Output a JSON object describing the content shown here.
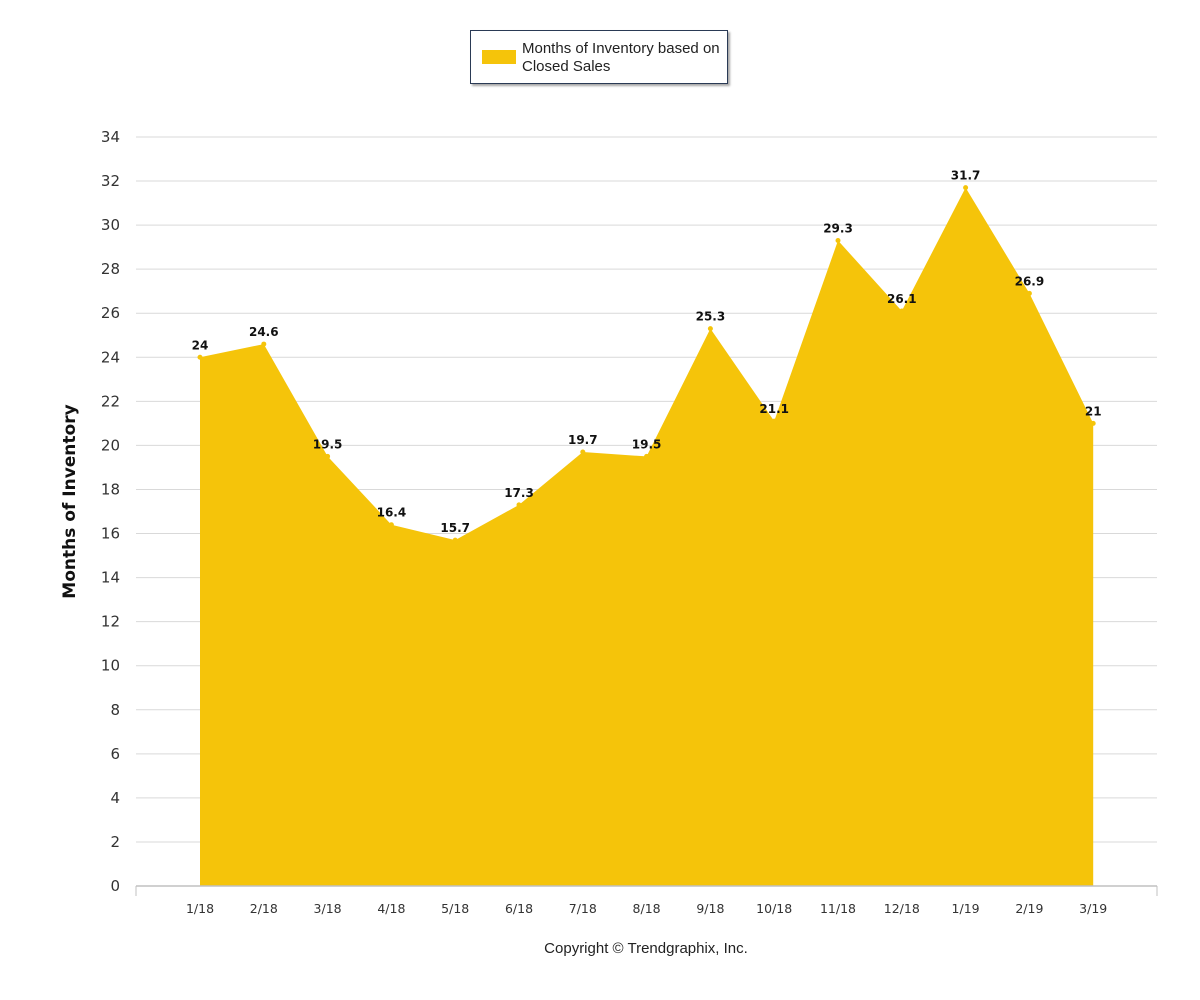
{
  "chart_data": {
    "type": "area",
    "categories": [
      "1/18",
      "2/18",
      "3/18",
      "4/18",
      "5/18",
      "6/18",
      "7/18",
      "8/18",
      "9/18",
      "10/18",
      "11/18",
      "12/18",
      "1/19",
      "2/19",
      "3/19"
    ],
    "series": [
      {
        "name": "Months of Inventory based on Closed Sales",
        "values": [
          24,
          24.6,
          19.5,
          16.4,
          15.7,
          17.3,
          19.7,
          19.5,
          25.3,
          21.1,
          29.3,
          26.1,
          31.7,
          26.9,
          21
        ],
        "color": "#F5C40A"
      }
    ],
    "data_labels": [
      "24",
      "24.6",
      "19.5",
      "16.4",
      "15.7",
      "17.3",
      "19.7",
      "19.5",
      "25.3",
      "21.1",
      "29.3",
      "26.1",
      "31.7",
      "26.9",
      "21"
    ],
    "ylabel": "Months of Inventory",
    "xlabel": "",
    "ylim": [
      0,
      34
    ],
    "yticks": [
      "0",
      "2",
      "4",
      "6",
      "8",
      "10",
      "12",
      "14",
      "16",
      "18",
      "20",
      "22",
      "24",
      "26",
      "28",
      "30",
      "32",
      "34"
    ],
    "grid": true,
    "legend_position": "top-center"
  },
  "legend": {
    "label": "Months of Inventory based on Closed Sales"
  },
  "footer": {
    "copyright": "Copyright © Trendgraphix, Inc."
  },
  "colors": {
    "area_fill": "#F5C40A",
    "grid": "#d9d9d9",
    "axis": "#c0c0c0"
  }
}
